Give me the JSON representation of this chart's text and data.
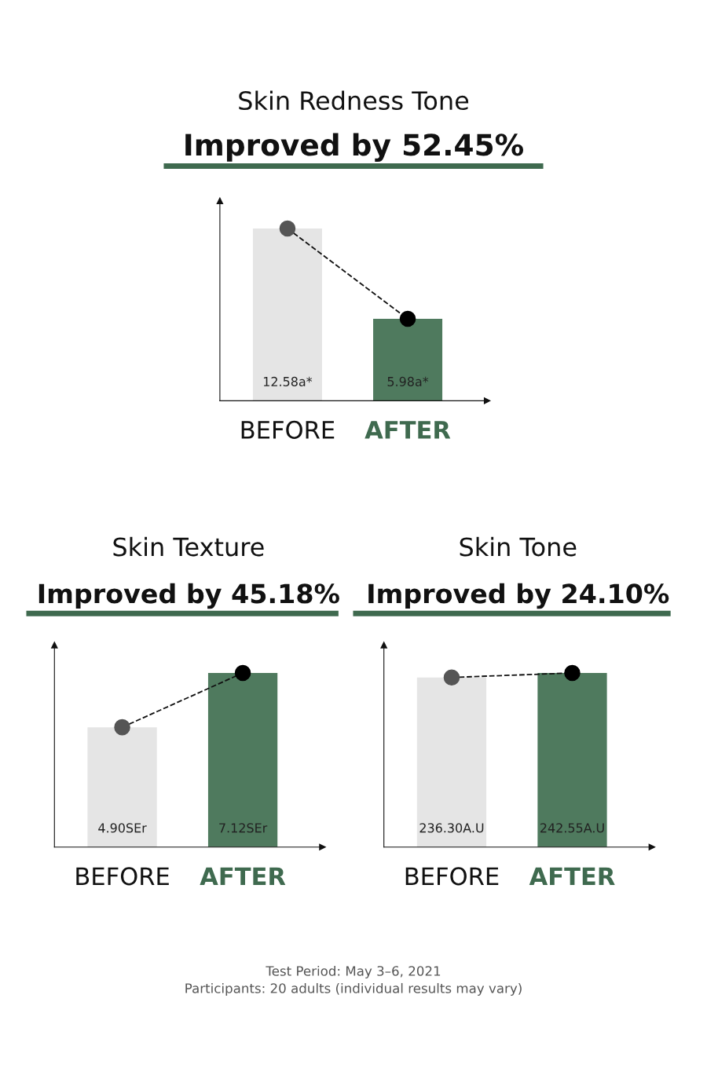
{
  "chart_data": [
    {
      "type": "bar",
      "title": "Skin Redness Tone",
      "subtitle": "Improved by 52.45%",
      "categories": [
        "BEFORE",
        "AFTER"
      ],
      "tick_labels": "x",
      "marker": "circle",
      "line_style": "dashed",
      "series": [
        {
          "colors": [
            "#e5e5e5",
            "#4f7a5e"
          ],
          "values": [
            12.58,
            5.98
          ],
          "value_labels": [
            "12.58a*",
            "5.98a*"
          ]
        },
        {
          "type": "line",
          "colors": [
            "#555555",
            "#000000"
          ],
          "values": [
            12.58,
            5.98
          ]
        }
      ]
    },
    {
      "type": "bar",
      "title": "Skin Texture",
      "subtitle": "Improved by 45.18%",
      "categories": [
        "BEFORE",
        "AFTER"
      ],
      "tick_labels": "x",
      "marker": "circle",
      "line_style": "dashed",
      "series": [
        {
          "colors": [
            "#e5e5e5",
            "#4f7a5e"
          ],
          "values": [
            4.9,
            7.12
          ],
          "value_labels": [
            "4.90SEr",
            "7.12SEr"
          ]
        },
        {
          "type": "line",
          "colors": [
            "#555555",
            "#000000"
          ],
          "values": [
            4.9,
            7.12
          ]
        }
      ]
    },
    {
      "type": "bar",
      "title": "Skin Tone",
      "subtitle": "Improved by 24.10%",
      "categories": [
        "BEFORE",
        "AFTER"
      ],
      "tick_labels": "x",
      "marker": "circle",
      "line_style": "dashed",
      "annotations": [
        "Test Period: May 3–6, 2021",
        "Participants: 20 adults (individual results may vary)"
      ],
      "series": [
        {
          "colors": [
            "#e5e5e5",
            "#4f7a5e"
          ],
          "values": [
            236.3,
            242.55
          ],
          "value_labels": [
            "236.30A.U",
            "242.55A.U"
          ]
        },
        {
          "type": "line",
          "colors": [
            "#555555",
            "#000000"
          ],
          "values": [
            236.3,
            242.55
          ]
        }
      ]
    }
  ]
}
